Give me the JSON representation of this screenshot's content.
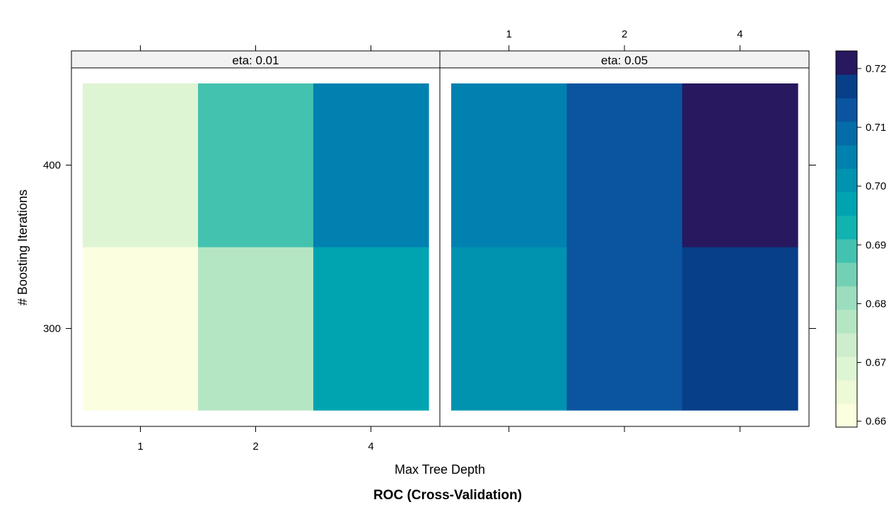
{
  "chart_data": {
    "type": "heatmap",
    "title": "ROC (Cross-Validation)",
    "xlabel": "Max Tree Depth",
    "ylabel": "# Boosting Iterations",
    "x_categories": [
      "1",
      "2",
      "4"
    ],
    "y_categories": [
      "300",
      "400"
    ],
    "y_ticks": [
      "300",
      "400"
    ],
    "panels": [
      {
        "strip": "eta: 0.01",
        "values": {
          "300": [
            0.6595,
            0.6775,
            0.6965
          ],
          "400": [
            0.6705,
            0.6875,
            0.7035
          ]
        }
      },
      {
        "strip": "eta: 0.05",
        "values": {
          "300": [
            0.7015,
            0.7135,
            0.7175
          ],
          "400": [
            0.7065,
            0.7135,
            0.7235
          ]
        }
      }
    ],
    "colorkey": {
      "min": 0.659,
      "max": 0.723,
      "ticks": [
        "0.66",
        "0.67",
        "0.68",
        "0.69",
        "0.70",
        "0.71",
        "0.72"
      ],
      "colors": [
        "#FCFEE0",
        "#EEF9D5",
        "#DEF5D3",
        "#CDEDCC",
        "#B5E6C3",
        "#9BDDBE",
        "#74D0B5",
        "#44C2B0",
        "#10B3AF",
        "#00A4B1",
        "#0093B0",
        "#0081AF",
        "#046CA8",
        "#0B55A0",
        "#073F89",
        "#27185F"
      ]
    }
  }
}
